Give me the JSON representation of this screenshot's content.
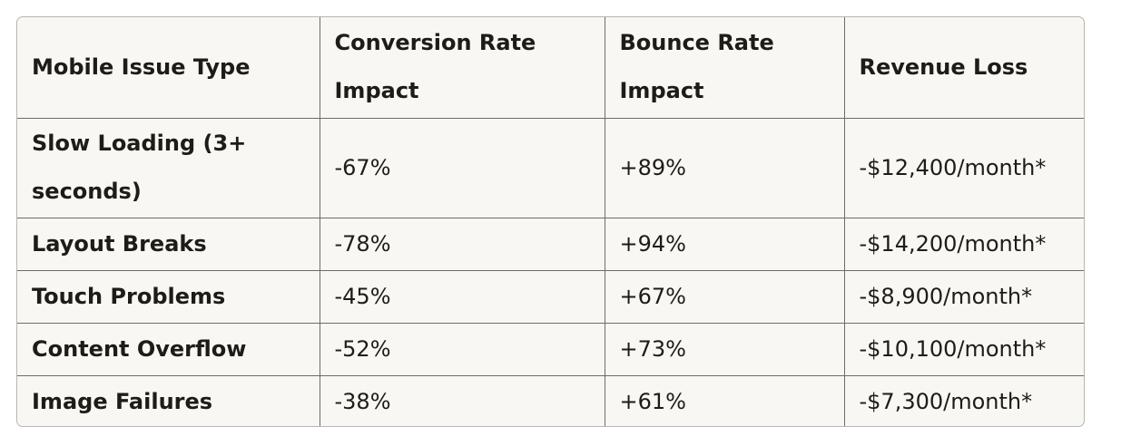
{
  "table": {
    "headers": [
      "Mobile Issue Type",
      "Conversion Rate Impact",
      "Bounce Rate Impact",
      "Revenue Loss"
    ],
    "rows": [
      {
        "issue": "Slow Loading (3+ seconds)",
        "conversion": "-67%",
        "bounce": "+89%",
        "revenue": "-$12,400/month*"
      },
      {
        "issue": "Layout Breaks",
        "conversion": "-78%",
        "bounce": "+94%",
        "revenue": "-$14,200/month*"
      },
      {
        "issue": "Touch Problems",
        "conversion": "-45%",
        "bounce": "+67%",
        "revenue": "-$8,900/month*"
      },
      {
        "issue": "Content Overflow",
        "conversion": "-52%",
        "bounce": "+73%",
        "revenue": "-$10,100/month*"
      },
      {
        "issue": "Image Failures",
        "conversion": "-38%",
        "bounce": "+61%",
        "revenue": "-$7,300/month*"
      }
    ]
  }
}
